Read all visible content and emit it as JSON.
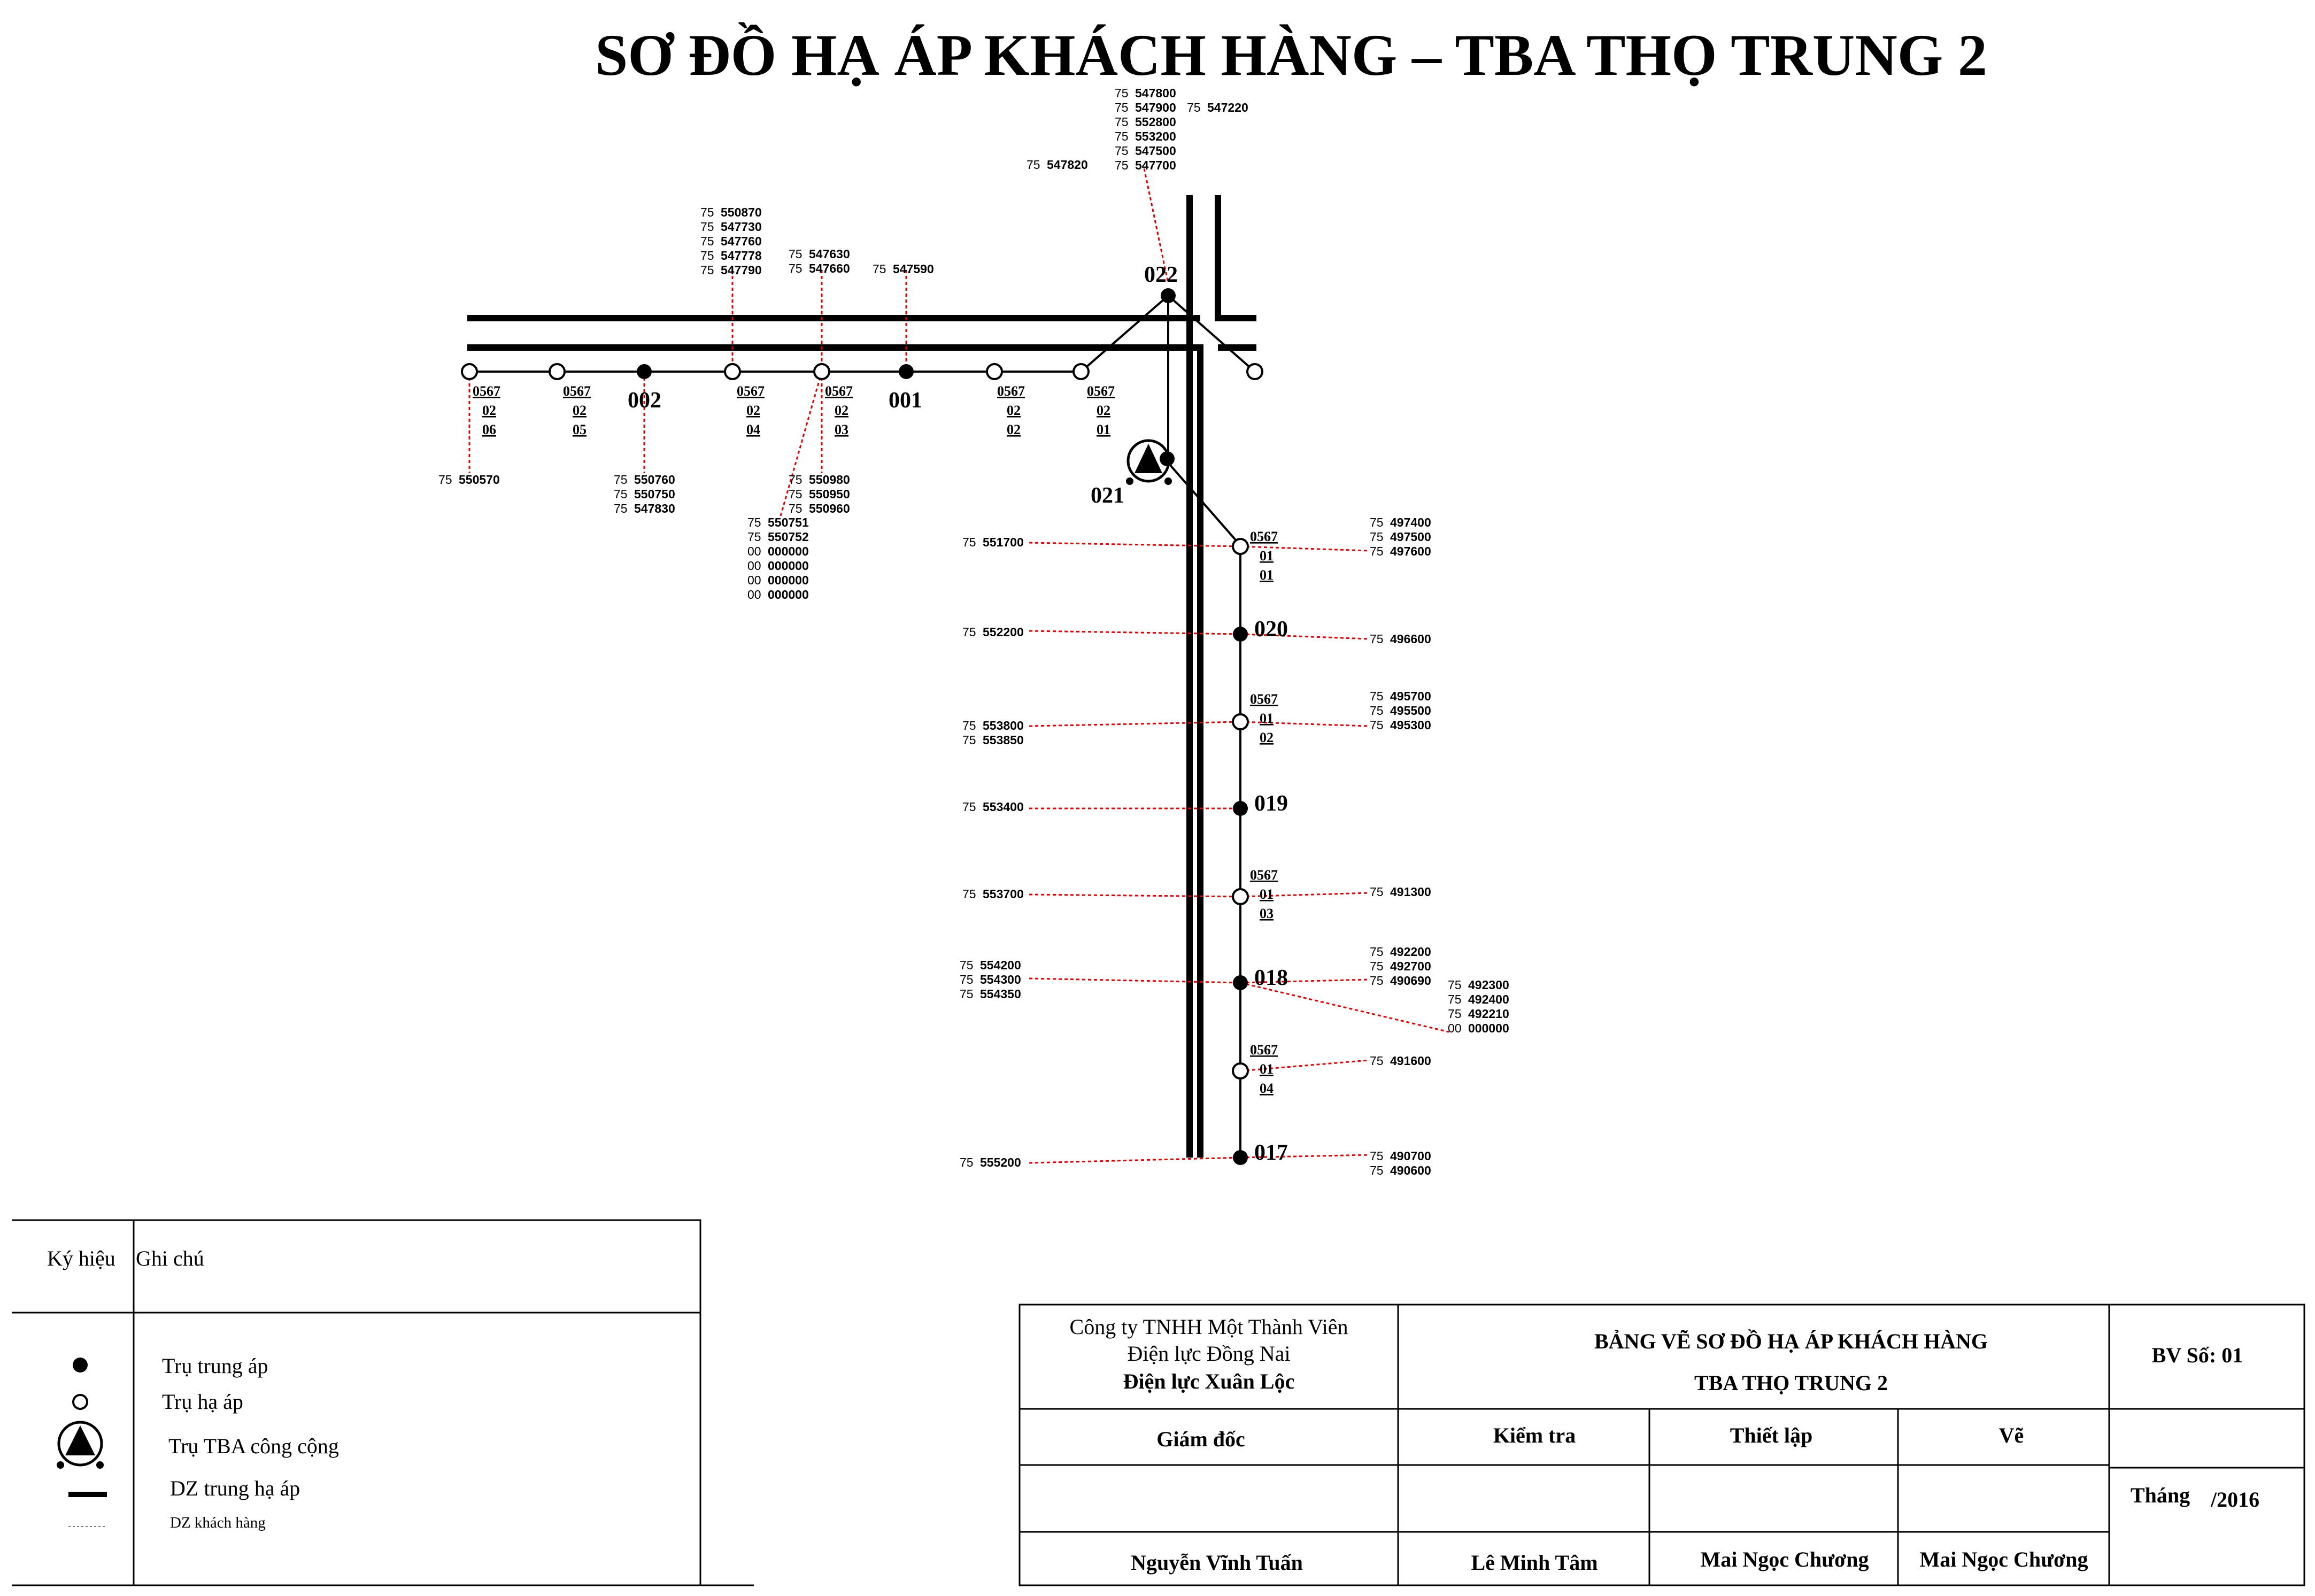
{
  "title": "SƠ ĐỒ HẠ ÁP KHÁCH HÀNG – TBA THỌ TRUNG 2",
  "poles": {
    "p022": "022",
    "p021": "021",
    "p002": "002",
    "p001": "001",
    "p020": "020",
    "p019": "019",
    "p018": "018",
    "p017": "017"
  },
  "lv_poles": [
    {
      "code": [
        "0567",
        "02",
        "06"
      ]
    },
    {
      "code": [
        "0567",
        "02",
        "05"
      ]
    },
    {
      "code": [
        "0567",
        "02",
        "04"
      ]
    },
    {
      "code": [
        "0567",
        "02",
        "03"
      ]
    },
    {
      "code": [
        "0567",
        "02",
        "02"
      ]
    },
    {
      "code": [
        "0567",
        "02",
        "01"
      ]
    },
    {
      "code": [
        "0567",
        "01",
        "01"
      ]
    },
    {
      "code": [
        "0567",
        "01",
        "02"
      ]
    },
    {
      "code": [
        "0567",
        "01",
        "03"
      ]
    },
    {
      "code": [
        "0567",
        "01",
        "04"
      ]
    }
  ],
  "customer_groups": [
    {
      "prefix": [
        "75",
        "75",
        "75",
        "75",
        "75",
        "75"
      ],
      "ids": [
        "547800",
        "547900",
        "552800",
        "553200",
        "547500",
        "547700"
      ],
      "extra_prefix": "75",
      "extra_id": "547220"
    },
    {
      "prefix": [
        "75"
      ],
      "ids": [
        "547820"
      ]
    },
    {
      "prefix": [
        "75",
        "75",
        "75",
        "75",
        "75"
      ],
      "ids": [
        "550870",
        "547730",
        "547760",
        "547778",
        "547790"
      ]
    },
    {
      "prefix": [
        "75",
        "75"
      ],
      "ids": [
        "547630",
        "547660"
      ]
    },
    {
      "prefix": [
        "75"
      ],
      "ids": [
        "547590"
      ]
    },
    {
      "prefix": [
        "75"
      ],
      "ids": [
        "550570"
      ]
    },
    {
      "prefix": [
        "75",
        "75",
        "75"
      ],
      "ids": [
        "550760",
        "550750",
        "547830"
      ]
    },
    {
      "prefix": [
        "75",
        "75",
        "75"
      ],
      "ids": [
        "550980",
        "550950",
        "550960"
      ]
    },
    {
      "prefix": [
        "75",
        "75",
        "00",
        "00",
        "00",
        "00"
      ],
      "ids": [
        "550751",
        "550752",
        "000000",
        "000000",
        "000000",
        "000000"
      ]
    },
    {
      "prefix": [
        "75"
      ],
      "ids": [
        "551700"
      ]
    },
    {
      "prefix": [
        "75",
        "75",
        "75"
      ],
      "ids": [
        "497400",
        "497500",
        "497600"
      ]
    },
    {
      "prefix": [
        "75"
      ],
      "ids": [
        "552200"
      ]
    },
    {
      "prefix": [
        "75"
      ],
      "ids": [
        "496600"
      ]
    },
    {
      "prefix": [
        "75",
        "75"
      ],
      "ids": [
        "553800",
        "553850"
      ]
    },
    {
      "prefix": [
        "75",
        "75",
        "75"
      ],
      "ids": [
        "495700",
        "495500",
        "495300"
      ]
    },
    {
      "prefix": [
        "75"
      ],
      "ids": [
        "553400"
      ]
    },
    {
      "prefix": [
        "75"
      ],
      "ids": [
        "553700"
      ]
    },
    {
      "prefix": [
        "75"
      ],
      "ids": [
        "491300"
      ]
    },
    {
      "prefix": [
        "75",
        "75",
        "75"
      ],
      "ids": [
        "554200",
        "554300",
        "554350"
      ]
    },
    {
      "prefix": [
        "75",
        "75",
        "75"
      ],
      "ids": [
        "492200",
        "492700",
        "490690"
      ]
    },
    {
      "prefix": [
        "75",
        "75",
        "75",
        "00"
      ],
      "ids": [
        "492300",
        "492400",
        "492210",
        "000000"
      ]
    },
    {
      "prefix": [
        "75"
      ],
      "ids": [
        "491600"
      ]
    },
    {
      "prefix": [
        "75"
      ],
      "ids": [
        "555200"
      ]
    },
    {
      "prefix": [
        "75",
        "75"
      ],
      "ids": [
        "490700",
        "490600"
      ]
    }
  ],
  "legend": {
    "col1_header": "Ký hiệu",
    "col2_header": "Ghi chú",
    "items": [
      {
        "icon": "filled-circle-icon",
        "label": "Trụ trung áp"
      },
      {
        "icon": "hollow-circle-icon",
        "label": "Trụ hạ áp"
      },
      {
        "icon": "transformer-icon",
        "label": "Trụ TBA công cộng"
      },
      {
        "icon": "thick-line-icon",
        "label": "DZ trung hạ áp"
      },
      {
        "icon": "dashed-line-icon",
        "label": "DZ khách hàng"
      }
    ]
  },
  "title_block": {
    "company_line1": "Công ty TNHH Một Thành Viên",
    "company_line2": "Điện lực Đồng Nai",
    "company_line3": "Điện lực Xuân Lộc",
    "drawing_line1": "BẢNG VẼ SƠ ĐỒ HẠ ÁP KHÁCH HÀNG",
    "drawing_line2": "TBA THỌ TRUNG 2",
    "drawing_no": "BV Số: 01",
    "role_director": "Giám đốc",
    "role_check": "Kiểm tra",
    "role_setup": "Thiết lập",
    "role_draw": "Vẽ",
    "month_label": "Tháng",
    "year_label": "/2016",
    "name_director": "Nguyễn Vĩnh Tuấn",
    "name_check": "Lê Minh Tâm",
    "name_setup": "Mai Ngọc Chương",
    "name_draw": "Mai Ngọc Chương"
  },
  "colors": {
    "line": "#000000",
    "customer_link": "#e00000"
  }
}
